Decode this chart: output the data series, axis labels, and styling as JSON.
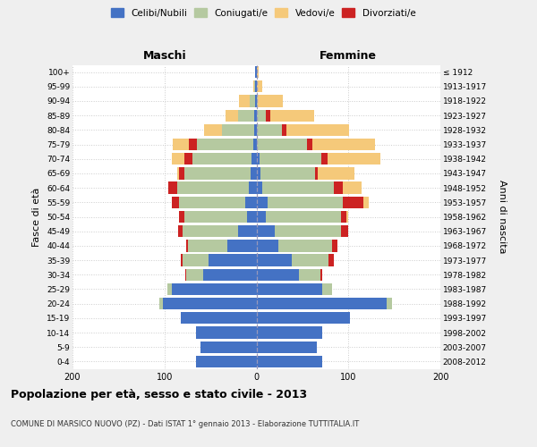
{
  "age_groups": [
    "0-4",
    "5-9",
    "10-14",
    "15-19",
    "20-24",
    "25-29",
    "30-34",
    "35-39",
    "40-44",
    "45-49",
    "50-54",
    "55-59",
    "60-64",
    "65-69",
    "70-74",
    "75-79",
    "80-84",
    "85-89",
    "90-94",
    "95-99",
    "100+"
  ],
  "birth_years": [
    "2008-2012",
    "2003-2007",
    "1998-2002",
    "1993-1997",
    "1988-1992",
    "1983-1987",
    "1978-1982",
    "1973-1977",
    "1968-1972",
    "1963-1967",
    "1958-1962",
    "1953-1957",
    "1948-1952",
    "1943-1947",
    "1938-1942",
    "1933-1937",
    "1928-1932",
    "1923-1927",
    "1918-1922",
    "1913-1917",
    "≤ 1912"
  ],
  "male_celibi": [
    66,
    61,
    66,
    82,
    102,
    92,
    58,
    52,
    32,
    20,
    10,
    12,
    8,
    6,
    5,
    3,
    2,
    2,
    1,
    1,
    1
  ],
  "male_coniugati": [
    0,
    0,
    0,
    0,
    4,
    5,
    18,
    28,
    42,
    60,
    68,
    72,
    78,
    72,
    65,
    62,
    35,
    18,
    6,
    1,
    0
  ],
  "male_vedovi": [
    0,
    0,
    0,
    0,
    0,
    0,
    0,
    0,
    0,
    0,
    0,
    0,
    0,
    2,
    14,
    18,
    20,
    14,
    12,
    1,
    0
  ],
  "male_divorziati": [
    0,
    0,
    0,
    0,
    0,
    0,
    1,
    2,
    2,
    5,
    6,
    8,
    10,
    6,
    8,
    8,
    0,
    0,
    0,
    0,
    0
  ],
  "female_nubili": [
    72,
    66,
    72,
    102,
    142,
    72,
    46,
    38,
    24,
    20,
    10,
    12,
    6,
    4,
    3,
    0,
    0,
    0,
    0,
    0,
    0
  ],
  "female_coniugate": [
    0,
    0,
    0,
    0,
    5,
    10,
    24,
    40,
    58,
    72,
    82,
    82,
    78,
    60,
    68,
    55,
    28,
    10,
    1,
    0,
    0
  ],
  "female_vedove": [
    0,
    0,
    0,
    0,
    0,
    0,
    0,
    0,
    0,
    0,
    2,
    6,
    20,
    40,
    58,
    68,
    68,
    48,
    28,
    6,
    2
  ],
  "female_divorziate": [
    0,
    0,
    0,
    0,
    0,
    0,
    2,
    6,
    6,
    8,
    6,
    22,
    10,
    3,
    6,
    6,
    5,
    5,
    0,
    0,
    0
  ],
  "color_celibi": "#4472c4",
  "color_coniugati": "#b5c9a0",
  "color_vedovi": "#f5c97a",
  "color_divorziati": "#cc2222",
  "xlim": 200,
  "title": "Popolazione per età, sesso e stato civile - 2013",
  "subtitle": "COMUNE DI MARSICO NUOVO (PZ) - Dati ISTAT 1° gennaio 2013 - Elaborazione TUTTITALIA.IT",
  "ylabel_left": "Fasce di età",
  "ylabel_right": "Anni di nascita",
  "label_maschi": "Maschi",
  "label_femmine": "Femmine",
  "legend_labels": [
    "Celibi/Nubili",
    "Coniugati/e",
    "Vedovi/e",
    "Divorziati/e"
  ],
  "bg_color": "#efefef",
  "plot_bg": "#ffffff"
}
